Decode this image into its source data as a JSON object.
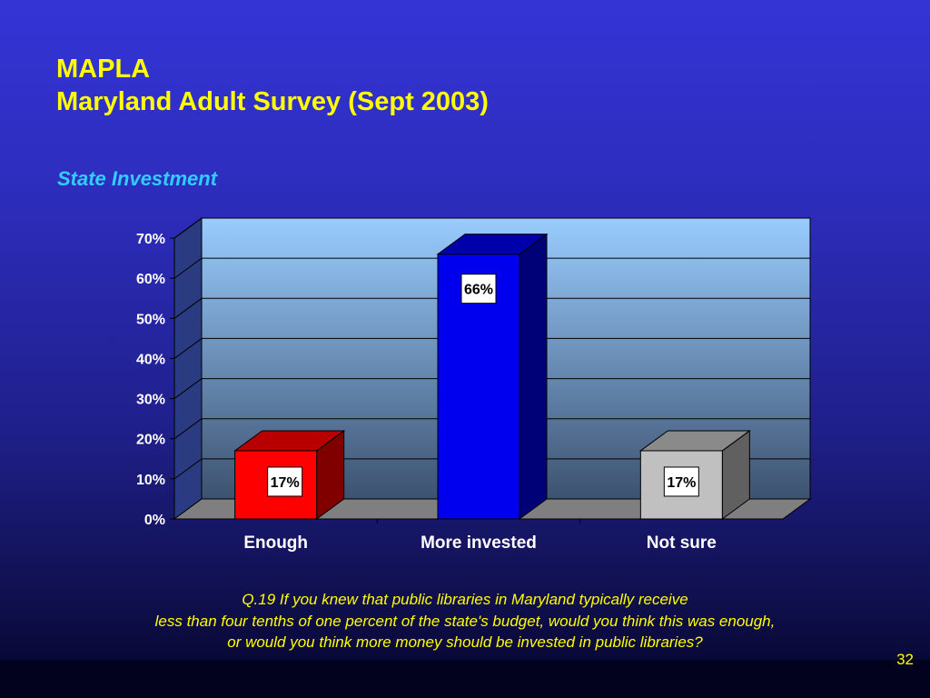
{
  "slide": {
    "title_line1": "MAPLA",
    "title_line2": "Maryland Adult Survey (Sept 2003)",
    "subtitle": "State Investment",
    "footnote_line1": "Q.19  If you knew that public libraries in Maryland typically receive",
    "footnote_line2": "less than four tenths of one percent of the state's budget, would you think this was enough,",
    "footnote_line3": "or would you think more money should be invested in public libraries?",
    "page_number": "32"
  },
  "chart_data": {
    "type": "bar",
    "categories": [
      "Enough",
      "More invested",
      "Not sure"
    ],
    "values": [
      17,
      66,
      17
    ],
    "data_labels": [
      "17%",
      "66%",
      "17%"
    ],
    "bar_colors": [
      "#ff0000",
      "#0000ee",
      "#c0c0c0"
    ],
    "ylim": [
      0,
      70
    ],
    "y_ticks": [
      "0%",
      "10%",
      "20%",
      "30%",
      "40%",
      "50%",
      "60%",
      "70%"
    ],
    "grid": true,
    "title": "",
    "xlabel": "",
    "ylabel": ""
  }
}
